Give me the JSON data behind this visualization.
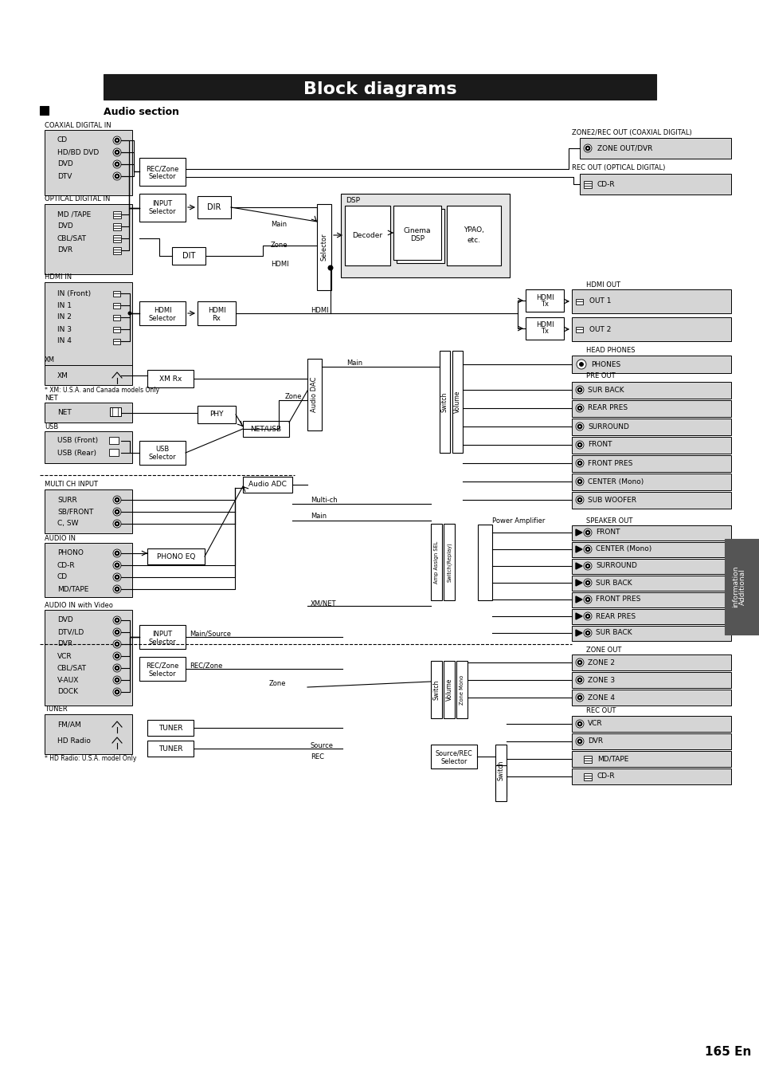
{
  "title": "Block diagrams",
  "section": "Audio section",
  "bg_color": "#ffffff",
  "title_bg": "#1a1a1a",
  "title_color": "#ffffff",
  "page_number": "165 En"
}
